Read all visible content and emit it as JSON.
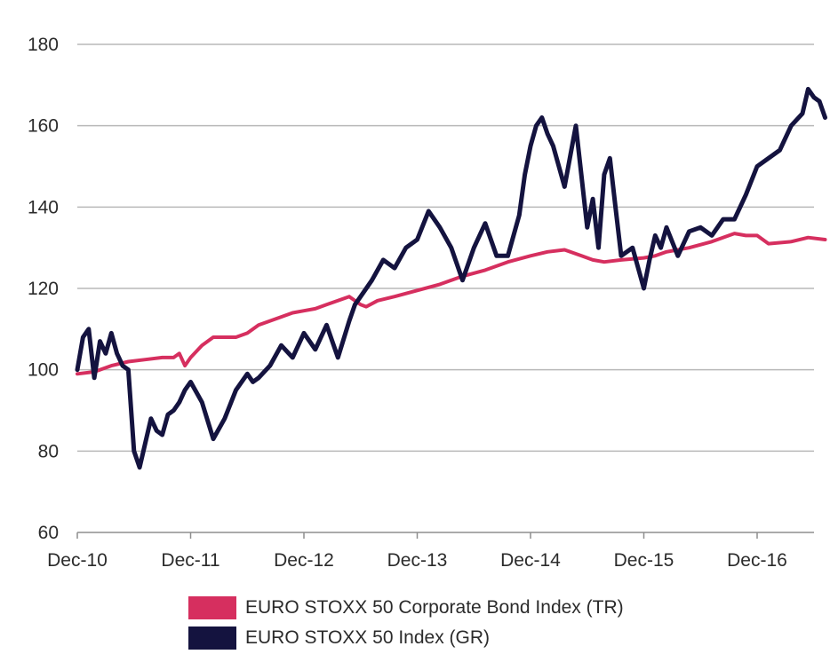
{
  "chart_data": {
    "type": "line",
    "ylim": [
      60,
      180
    ],
    "yticks": [
      60,
      80,
      100,
      120,
      140,
      160,
      180
    ],
    "xlim": [
      0,
      6.6
    ],
    "xticks": [
      {
        "x": 0,
        "label": "Dec-10"
      },
      {
        "x": 1,
        "label": "Dec-11"
      },
      {
        "x": 2,
        "label": "Dec-12"
      },
      {
        "x": 3,
        "label": "Dec-13"
      },
      {
        "x": 4,
        "label": "Dec-14"
      },
      {
        "x": 5,
        "label": "Dec-15"
      },
      {
        "x": 6,
        "label": "Dec-16"
      }
    ],
    "x_unit": "years since Dec-10",
    "grid": "horizontal",
    "legend_position": "bottom",
    "series": [
      {
        "name": "EURO STOXX 50 Corporate Bond Index (TR)",
        "color": "#d62f5f",
        "x": [
          0,
          0.15,
          0.3,
          0.45,
          0.6,
          0.75,
          0.85,
          0.9,
          0.95,
          1.0,
          1.1,
          1.2,
          1.3,
          1.4,
          1.5,
          1.6,
          1.8,
          1.9,
          2.0,
          2.1,
          2.2,
          2.3,
          2.4,
          2.5,
          2.55,
          2.65,
          2.8,
          3.0,
          3.2,
          3.4,
          3.6,
          3.8,
          4.0,
          4.15,
          4.3,
          4.45,
          4.55,
          4.65,
          4.8,
          5.0,
          5.1,
          5.2,
          5.4,
          5.6,
          5.8,
          5.9,
          6.0,
          6.1,
          6.3,
          6.45,
          6.6
        ],
        "values": [
          99,
          99.5,
          101,
          102,
          102.5,
          103,
          103,
          104,
          101,
          103,
          106,
          108,
          108,
          108,
          109,
          111,
          113,
          114,
          114.5,
          115,
          116,
          117,
          118,
          116,
          115.5,
          117,
          118,
          119.5,
          121,
          123,
          124.5,
          126.5,
          128,
          129,
          129.5,
          128,
          127,
          126.5,
          127,
          127.5,
          128,
          129,
          130,
          131.5,
          133.5,
          133,
          133,
          131,
          131.5,
          132.5,
          132
        ]
      },
      {
        "name": "EURO STOXX 50 Index (GR)",
        "color": "#14133f",
        "x": [
          0,
          0.05,
          0.1,
          0.15,
          0.2,
          0.25,
          0.3,
          0.35,
          0.4,
          0.45,
          0.5,
          0.55,
          0.6,
          0.65,
          0.7,
          0.75,
          0.8,
          0.85,
          0.9,
          0.95,
          1.0,
          1.1,
          1.2,
          1.3,
          1.4,
          1.5,
          1.55,
          1.6,
          1.7,
          1.8,
          1.9,
          2.0,
          2.1,
          2.2,
          2.3,
          2.4,
          2.45,
          2.5,
          2.6,
          2.7,
          2.8,
          2.9,
          3.0,
          3.1,
          3.2,
          3.3,
          3.4,
          3.5,
          3.6,
          3.7,
          3.8,
          3.9,
          3.95,
          4.0,
          4.05,
          4.1,
          4.15,
          4.2,
          4.3,
          4.4,
          4.5,
          4.55,
          4.6,
          4.65,
          4.7,
          4.75,
          4.8,
          4.9,
          5.0,
          5.05,
          5.1,
          5.15,
          5.2,
          5.3,
          5.4,
          5.5,
          5.6,
          5.7,
          5.8,
          5.9,
          6.0,
          6.1,
          6.2,
          6.3,
          6.4,
          6.45,
          6.5,
          6.55,
          6.6
        ],
        "values": [
          100,
          108,
          110,
          98,
          107,
          104,
          109,
          104,
          101,
          100,
          80,
          76,
          82,
          88,
          85,
          84,
          89,
          90,
          92,
          95,
          97,
          92,
          83,
          88,
          95,
          99,
          97,
          98,
          101,
          106,
          103,
          109,
          105,
          111,
          103,
          112,
          116,
          118,
          122,
          127,
          125,
          130,
          132,
          139,
          135,
          130,
          122,
          130,
          136,
          128,
          128,
          138,
          148,
          155,
          160,
          162,
          158,
          155,
          145,
          160,
          135,
          142,
          130,
          148,
          152,
          140,
          128,
          130,
          120,
          127,
          133,
          130,
          135,
          128,
          134,
          135,
          133,
          137,
          137,
          143,
          150,
          152,
          154,
          160,
          163,
          169,
          167,
          166,
          162
        ]
      }
    ]
  }
}
